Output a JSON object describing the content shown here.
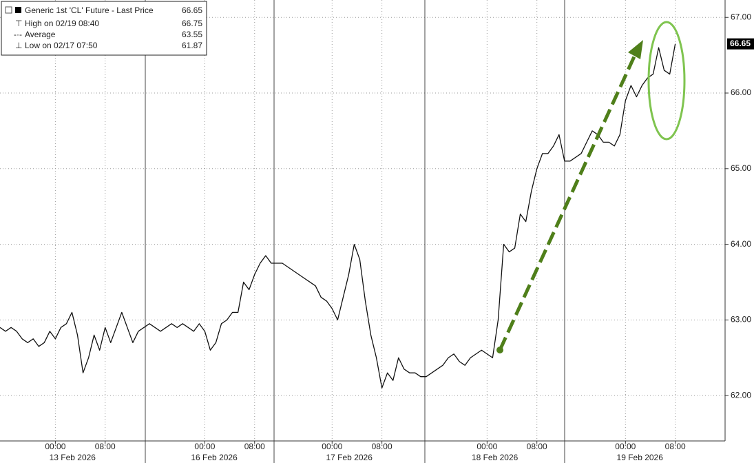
{
  "chart_data": {
    "type": "line",
    "x": [
      0,
      1,
      2,
      3,
      4,
      5,
      6,
      7,
      8,
      9,
      10,
      11,
      12,
      13,
      14,
      15,
      16,
      17,
      18,
      19,
      20,
      21,
      22,
      23,
      24,
      25,
      26,
      27,
      28,
      29,
      30,
      31,
      32,
      33,
      34,
      35,
      36,
      37,
      38,
      39,
      40,
      41,
      42,
      43,
      44,
      45,
      46,
      47,
      48,
      49,
      50,
      51,
      52,
      53,
      54,
      55,
      56,
      57,
      58,
      59,
      60,
      61,
      62,
      63,
      64,
      65,
      66,
      67,
      68,
      69,
      70,
      71,
      72,
      73,
      74,
      75,
      76,
      77,
      78,
      79,
      80,
      81,
      82,
      83,
      84,
      85,
      86,
      87,
      88,
      89,
      90,
      91,
      92,
      93,
      94,
      95,
      96,
      97,
      98,
      99,
      100,
      101,
      102,
      103,
      104,
      105,
      106,
      107,
      108,
      109,
      110,
      111,
      112,
      113,
      114,
      115,
      116,
      117,
      118,
      119,
      120,
      121,
      122
    ],
    "series": [
      {
        "name": "Generic 1st 'CL' Future - Last Price",
        "color": "#111111",
        "values": [
          62.9,
          62.85,
          62.9,
          62.85,
          62.75,
          62.7,
          62.75,
          62.65,
          62.7,
          62.85,
          62.75,
          62.9,
          62.95,
          63.1,
          62.8,
          62.3,
          62.5,
          62.8,
          62.6,
          62.9,
          62.7,
          62.9,
          63.1,
          62.9,
          62.7,
          62.85,
          62.9,
          62.95,
          62.9,
          62.85,
          62.9,
          62.95,
          62.9,
          62.95,
          62.9,
          62.85,
          62.95,
          62.85,
          62.6,
          62.7,
          62.95,
          63.0,
          63.1,
          63.1,
          63.5,
          63.4,
          63.6,
          63.75,
          63.85,
          63.75,
          63.75,
          63.75,
          63.7,
          63.65,
          63.6,
          63.55,
          63.5,
          63.45,
          63.3,
          63.25,
          63.15,
          63.0,
          63.3,
          63.6,
          64.0,
          63.8,
          63.25,
          62.8,
          62.5,
          62.1,
          62.3,
          62.2,
          62.5,
          62.35,
          62.3,
          62.3,
          62.25,
          62.25,
          62.3,
          62.35,
          62.4,
          62.5,
          62.55,
          62.45,
          62.4,
          62.5,
          62.55,
          62.6,
          62.55,
          62.5,
          63.0,
          64.0,
          63.9,
          63.95,
          64.4,
          64.3,
          64.7,
          65.0,
          65.2,
          65.2,
          65.3,
          65.45,
          65.1,
          65.1,
          65.15,
          65.2,
          65.35,
          65.5,
          65.45,
          65.35,
          65.35,
          65.3,
          65.45,
          65.9,
          66.1,
          65.95,
          66.1,
          66.2,
          66.25,
          66.6,
          66.3,
          66.25,
          66.65
        ]
      }
    ],
    "xlim": [
      0,
      131
    ],
    "xticks": [
      {
        "value": 10,
        "label": "00:00"
      },
      {
        "value": 19,
        "label": "08:00"
      },
      {
        "value": 37,
        "label": "00:00"
      },
      {
        "value": 46,
        "label": "08:00"
      },
      {
        "value": 60,
        "label": "00:00"
      },
      {
        "value": 69,
        "label": "08:00"
      },
      {
        "value": 88,
        "label": "00:00"
      },
      {
        "value": 97,
        "label": "08:00"
      },
      {
        "value": 113,
        "label": "00:00"
      },
      {
        "value": 122,
        "label": "08:00"
      }
    ],
    "date_labels": [
      {
        "value": 13.1,
        "label": "13 Feb 2026"
      },
      {
        "value": 38.7,
        "label": "16 Feb 2026"
      },
      {
        "value": 63.1,
        "label": "17 Feb 2026"
      },
      {
        "value": 89.4,
        "label": "18 Feb 2026"
      },
      {
        "value": 115.6,
        "label": "19 Feb 2026"
      }
    ],
    "ylim": [
      61.4,
      67.23
    ],
    "yticks": [
      {
        "value": 62,
        "label": "62.00"
      },
      {
        "value": 63,
        "label": "63.00"
      },
      {
        "value": 64,
        "label": "64.00"
      },
      {
        "value": 65,
        "label": "65.00"
      },
      {
        "value": 66,
        "label": "66.00"
      },
      {
        "value": 67,
        "label": "67.00"
      }
    ],
    "grid": true,
    "last_price": 66.65,
    "legend": [
      {
        "label": "High on 02/19 08:40",
        "value": 66.75
      },
      {
        "label": "Average",
        "value": 63.55
      },
      {
        "label": "Low on 02/17 07:50",
        "value": 61.87
      }
    ]
  }
}
